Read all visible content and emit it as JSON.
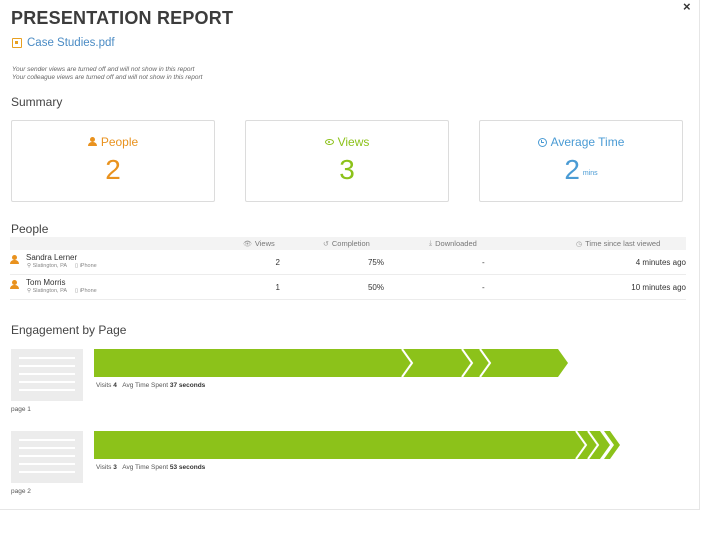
{
  "report": {
    "title": "PRESENTATION REPORT",
    "file_name": "Case Studies.pdf",
    "notes": [
      "Your sender views are turned off and will not show in this report",
      "Your colleague views are turned off and will not show in this report"
    ],
    "close_symbol": "×"
  },
  "summary": {
    "heading": "Summary",
    "people": {
      "label": "People",
      "value": "2"
    },
    "views": {
      "label": "Views",
      "value": "3"
    },
    "avg_time": {
      "label": "Average Time",
      "value": "2",
      "unit": "mins"
    }
  },
  "people_section": {
    "heading": "People",
    "columns": {
      "views": "Views",
      "completion": "Completion",
      "downloaded": "Downloaded",
      "time_since": "Time since last viewed"
    },
    "rows": [
      {
        "name": "Sandra Lerner",
        "location": "Slatington, PA",
        "device": "iPhone",
        "views": "2",
        "completion": "75%",
        "downloaded": "-",
        "time_since": "4 minutes ago"
      },
      {
        "name": "Tom Morris",
        "location": "Slatington, PA",
        "device": "iPhone",
        "views": "1",
        "completion": "50%",
        "downloaded": "-",
        "time_since": "10 minutes ago"
      }
    ]
  },
  "engagement": {
    "heading": "Engagement by Page",
    "visits_label": "Visits",
    "avg_label": "Avg Time Spent",
    "pages": [
      {
        "label": "page 1",
        "visits": "4",
        "avg_time": "37 seconds",
        "bar_fraction": 0.79,
        "chevrons": [
          0.53,
          0.63,
          0.66
        ]
      },
      {
        "label": "page 2",
        "visits": "3",
        "avg_time": "53 seconds",
        "bar_fraction": 0.86,
        "chevrons": [
          0.82,
          0.84
        ]
      }
    ],
    "bar_color": "#8cc21a"
  },
  "colors": {
    "people": "#e9921e",
    "views": "#8cc21a",
    "time": "#4a9bd4",
    "link": "#4a8bc4"
  },
  "icons": {
    "file": "file-icon",
    "person": "person-icon",
    "views": "eye-icon",
    "time": "clock-icon",
    "completion": "history-icon",
    "downloaded": "download-icon",
    "location": "location-pin-icon",
    "device": "phone-icon"
  }
}
